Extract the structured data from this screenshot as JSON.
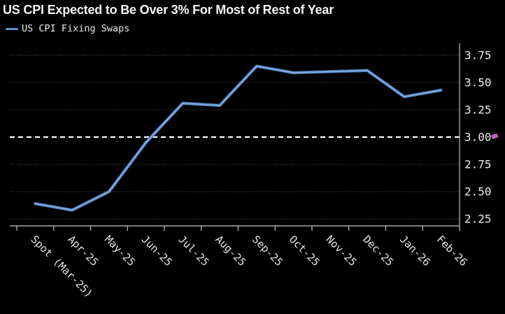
{
  "header": {
    "title": "US CPI Expected to Be Over 3% For Most of Rest of Year"
  },
  "legend": {
    "label": "US CPI Fixing Swaps",
    "swatch_color": "#5f8fcc"
  },
  "colors": {
    "background": "#000000",
    "title_text": "#f5f5f5",
    "axis_line": "#c4c4c4",
    "grid_dotted": "#5e5e54",
    "reference_line": "#fafafa",
    "series_line": "#5f8fcc",
    "series_line_highlight": "#8fb3e2",
    "series_line_shadow": "#3e699f",
    "edit_marker": "#c063c0"
  },
  "chart_data": {
    "type": "line",
    "title": "US CPI Expected to Be Over 3% For Most of Rest of Year",
    "legend_position": "top-left",
    "grid": "dotted horizontal gridlines on black",
    "y_axis_side": "right",
    "ylim": [
      2.19,
      3.85
    ],
    "y_ticks": [
      3.75,
      3.5,
      3.25,
      3.0,
      2.75,
      2.5,
      2.25
    ],
    "y_tick_labels": [
      "3.75",
      "3.50",
      "3.25",
      "3.00",
      "2.75",
      "2.50",
      "2.25"
    ],
    "reference_line": {
      "value": 3.0,
      "style": "dashed",
      "color": "#fafafa"
    },
    "categories": [
      "Spot (Mar-25)",
      "Apr-25",
      "May-25",
      "Jun-25",
      "Jul-25",
      "Aug-25",
      "Sep-25",
      "Oct-25",
      "Nov-25",
      "Dec-25",
      "Jan-26",
      "Feb-26"
    ],
    "series": [
      {
        "name": "US CPI Fixing Swaps",
        "color": "#5f8fcc",
        "values": [
          2.39,
          2.33,
          2.5,
          2.95,
          3.31,
          3.29,
          3.65,
          3.59,
          3.6,
          3.61,
          3.37,
          3.43
        ]
      }
    ]
  }
}
